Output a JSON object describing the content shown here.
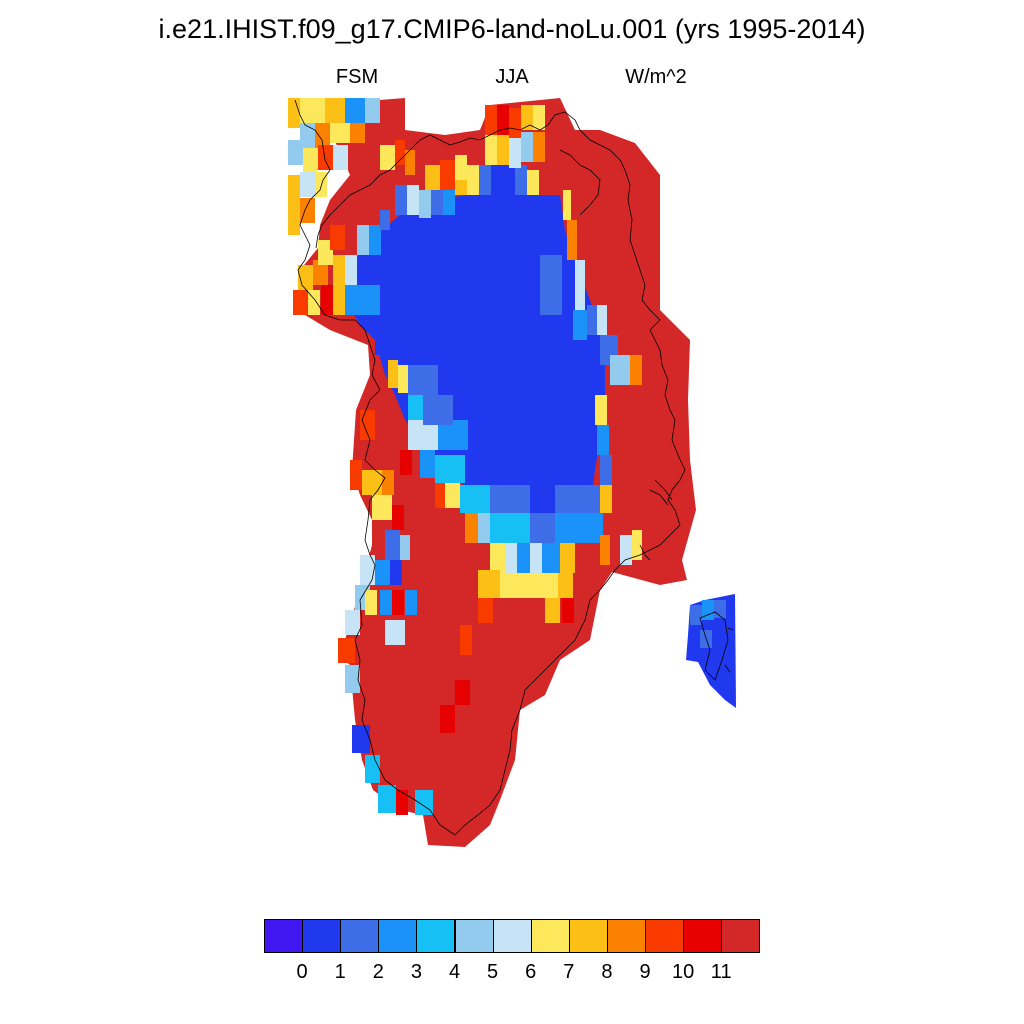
{
  "title": "i.e21.IHIST.f09_g17.CMIP6-land-noLu.001 (yrs 1995-2014)",
  "subtitle": {
    "left": "FSM",
    "center": "JJA",
    "right": "W/m^2"
  },
  "colorbar": {
    "colors": [
      "#4016f2",
      "#2039ee",
      "#3d6ee8",
      "#1a92f8",
      "#17c0f4",
      "#92cbed",
      "#c6e4f6",
      "#fde85c",
      "#fbbf16",
      "#fb8200",
      "#fa3b00",
      "#e60000",
      "#d42828"
    ],
    "labels": [
      "0",
      "1",
      "2",
      "3",
      "4",
      "5",
      "6",
      "7",
      "8",
      "9",
      "10",
      "11"
    ]
  }
}
